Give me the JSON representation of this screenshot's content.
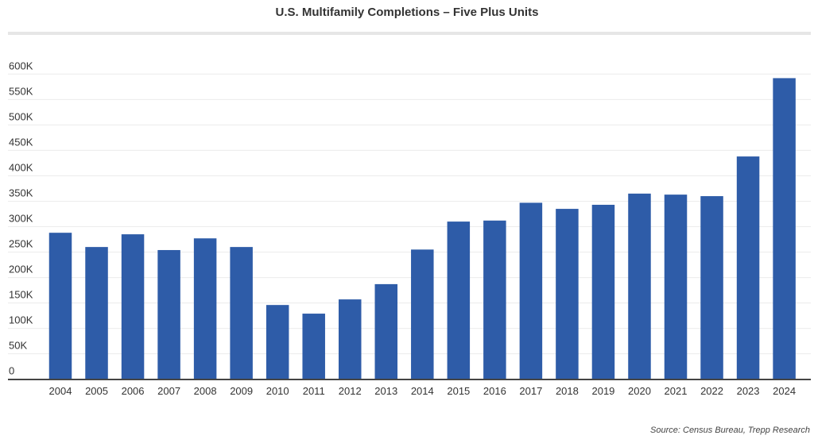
{
  "chart_data": {
    "type": "bar",
    "title": "U.S. Multifamily Completions – Five Plus Units",
    "xlabel": "",
    "ylabel": "",
    "categories": [
      "2004",
      "2005",
      "2006",
      "2007",
      "2008",
      "2009",
      "2010",
      "2011",
      "2012",
      "2013",
      "2014",
      "2015",
      "2016",
      "2017",
      "2018",
      "2019",
      "2020",
      "2021",
      "2022",
      "2023",
      "2024"
    ],
    "values": [
      288000,
      260000,
      285000,
      254000,
      277000,
      260000,
      146000,
      129000,
      157000,
      187000,
      255000,
      310000,
      312000,
      347000,
      335000,
      343000,
      365000,
      363000,
      360000,
      438000,
      592000
    ],
    "ylim": [
      0,
      600000
    ],
    "yticks": [
      0,
      50000,
      100000,
      150000,
      200000,
      250000,
      300000,
      350000,
      400000,
      450000,
      500000,
      550000,
      600000
    ],
    "ytick_labels": [
      "0",
      "50K",
      "100K",
      "150K",
      "200K",
      "250K",
      "300K",
      "350K",
      "400K",
      "450K",
      "500K",
      "550K",
      "600K"
    ],
    "grid": true,
    "legend": "none",
    "bar_color": "#2e5ca8",
    "source": "Source: Census Bureau, Trepp Research"
  }
}
